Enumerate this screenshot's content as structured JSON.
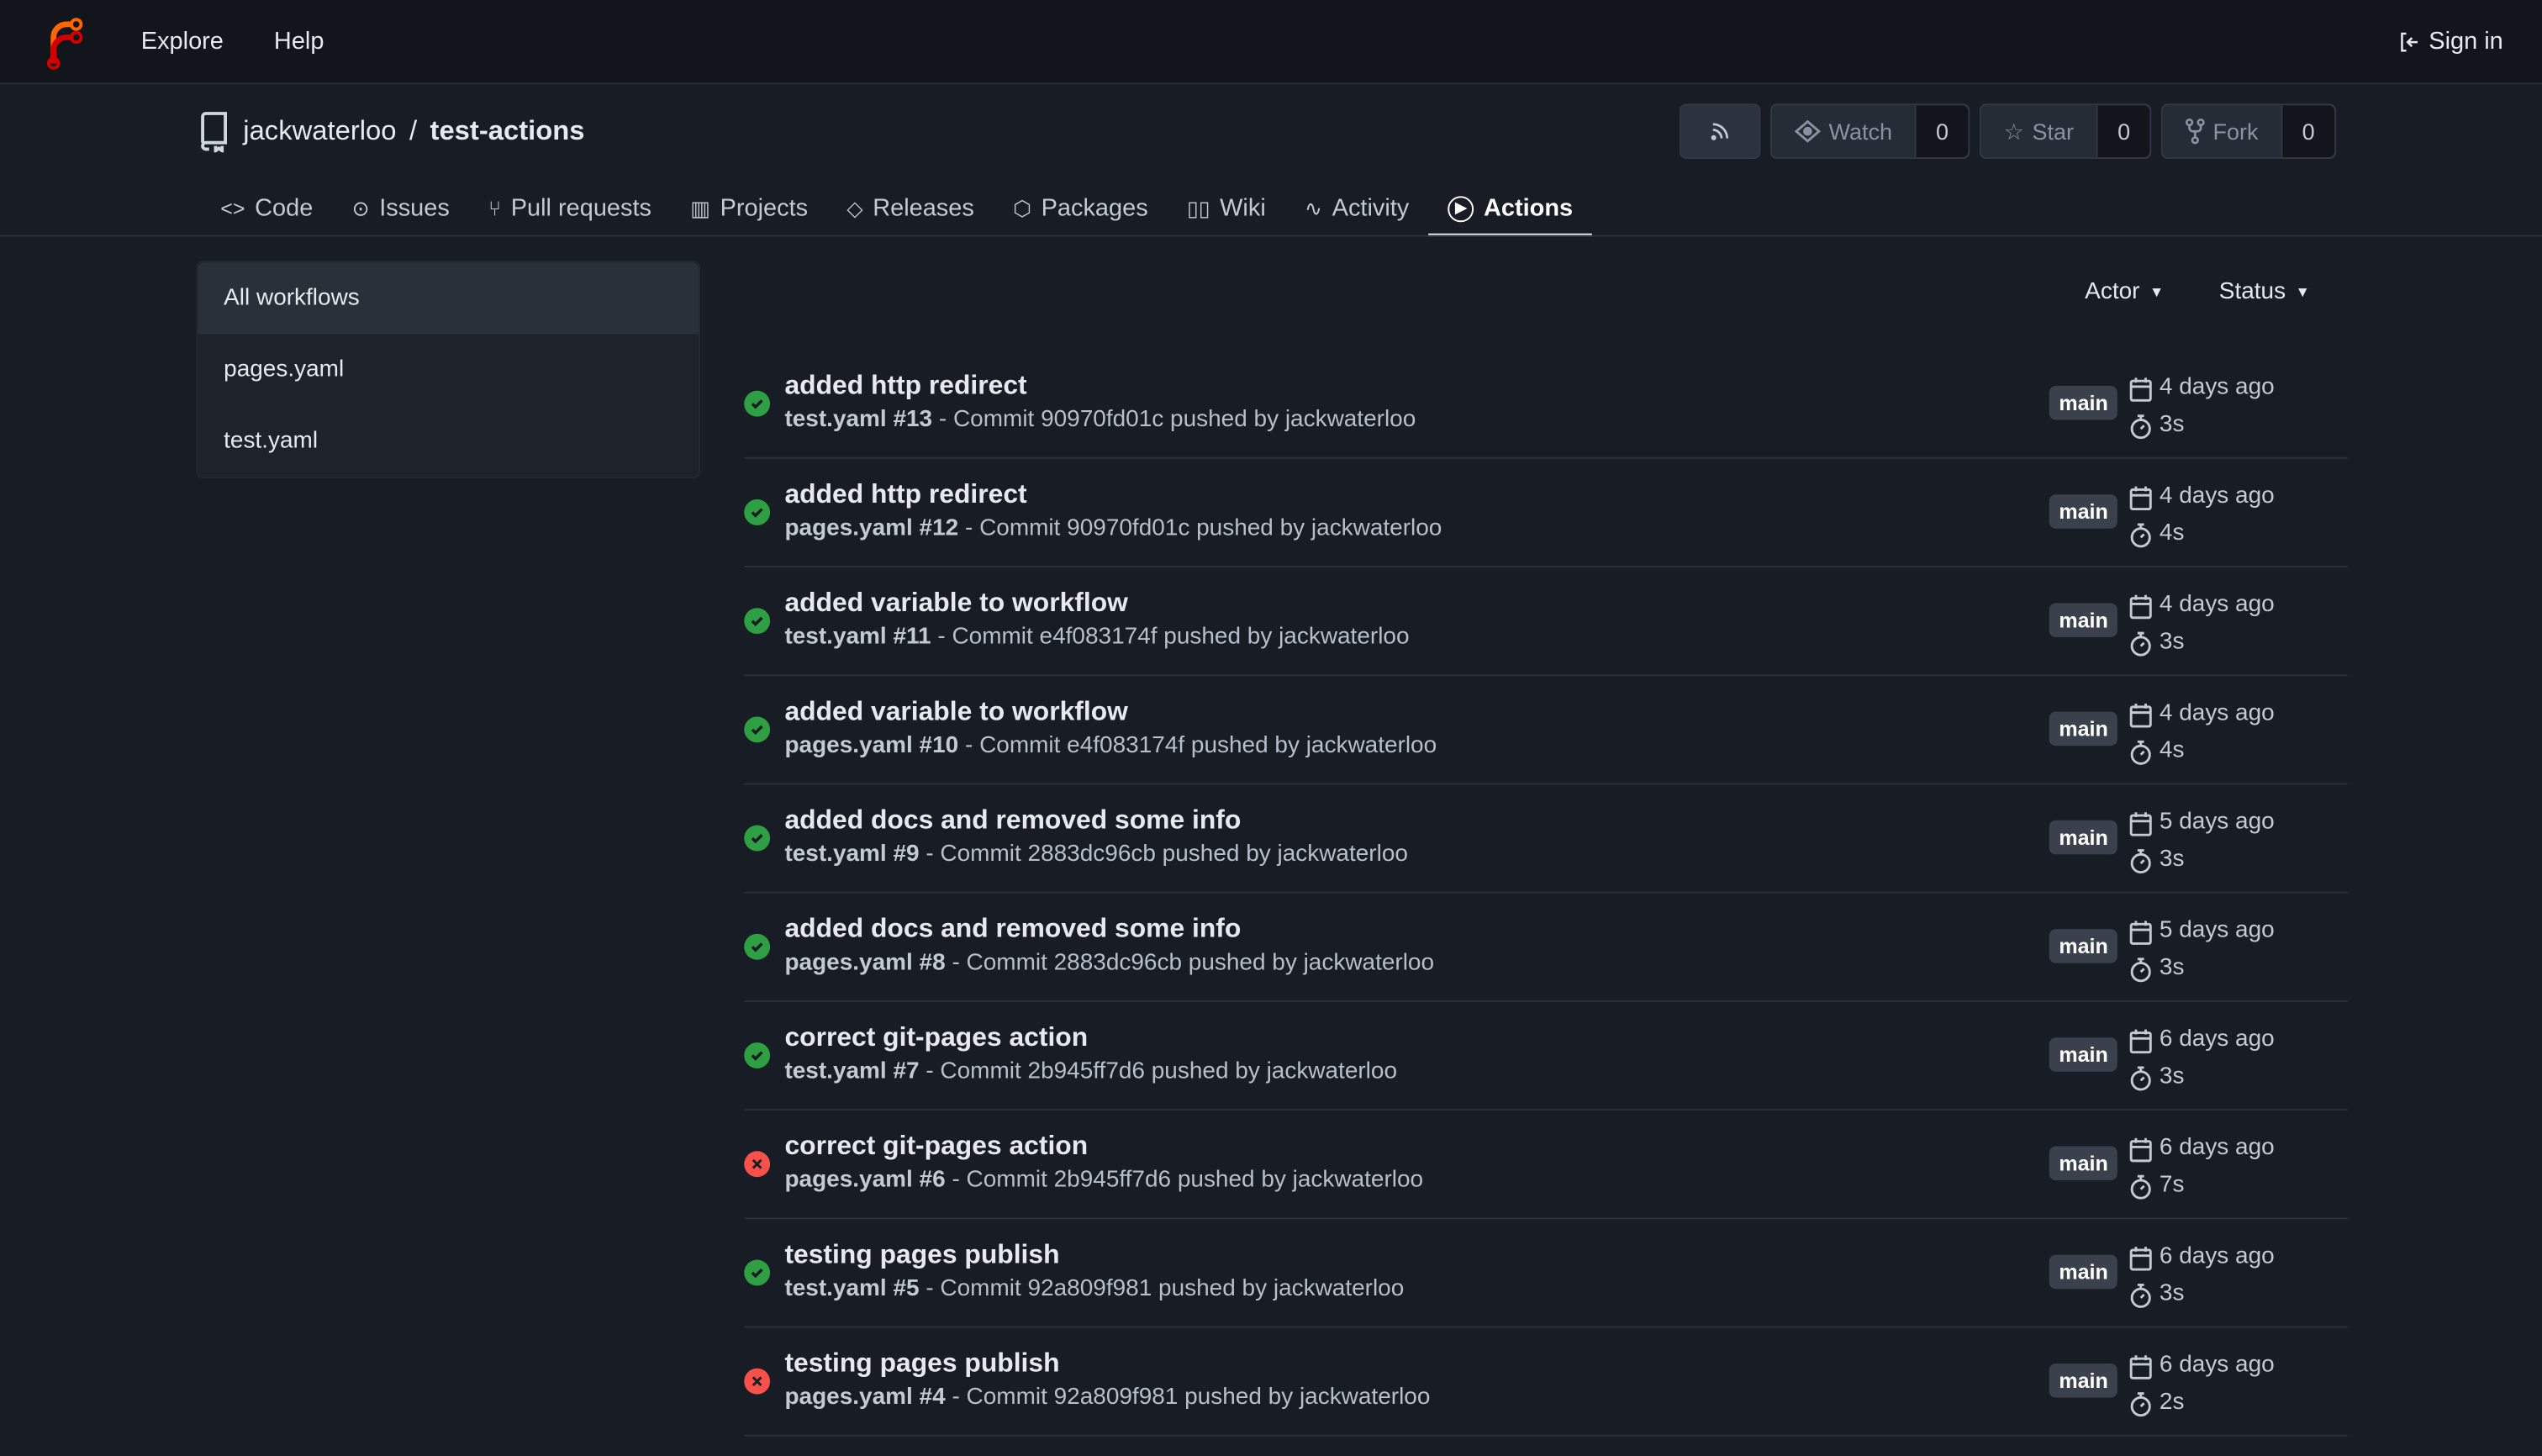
{
  "topbar": {
    "explore": "Explore",
    "help": "Help",
    "sign_in": "Sign in"
  },
  "repo": {
    "owner": "jackwaterloo",
    "separator": "/",
    "name": "test-actions"
  },
  "buttons": {
    "watch": "Watch",
    "watch_count": "0",
    "star": "Star",
    "star_count": "0",
    "fork": "Fork",
    "fork_count": "0"
  },
  "tabs": [
    {
      "label": "Code",
      "icon": "code-icon"
    },
    {
      "label": "Issues",
      "icon": "issue-icon"
    },
    {
      "label": "Pull requests",
      "icon": "pull-request-icon"
    },
    {
      "label": "Projects",
      "icon": "project-icon"
    },
    {
      "label": "Releases",
      "icon": "tag-icon"
    },
    {
      "label": "Packages",
      "icon": "package-icon"
    },
    {
      "label": "Wiki",
      "icon": "book-icon"
    },
    {
      "label": "Activity",
      "icon": "pulse-icon"
    },
    {
      "label": "Actions",
      "icon": "play-icon",
      "active": true
    }
  ],
  "sidebar": {
    "items": [
      {
        "label": "All workflows",
        "active": true
      },
      {
        "label": "pages.yaml"
      },
      {
        "label": "test.yaml"
      }
    ]
  },
  "filters": {
    "actor": "Actor",
    "status": "Status"
  },
  "colors": {
    "success": "#2ea043",
    "failure": "#f85149"
  },
  "runs": [
    {
      "title": "added http redirect",
      "workflow": "test.yaml #13",
      "detail": "- Commit 90970fd01c pushed by jackwaterloo",
      "branch": "main",
      "when": "4 days ago",
      "duration": "3s",
      "status": "success"
    },
    {
      "title": "added http redirect",
      "workflow": "pages.yaml #12",
      "detail": "- Commit 90970fd01c pushed by jackwaterloo",
      "branch": "main",
      "when": "4 days ago",
      "duration": "4s",
      "status": "success"
    },
    {
      "title": "added variable to workflow",
      "workflow": "test.yaml #11",
      "detail": "- Commit e4f083174f pushed by jackwaterloo",
      "branch": "main",
      "when": "4 days ago",
      "duration": "3s",
      "status": "success"
    },
    {
      "title": "added variable to workflow",
      "workflow": "pages.yaml #10",
      "detail": "- Commit e4f083174f pushed by jackwaterloo",
      "branch": "main",
      "when": "4 days ago",
      "duration": "4s",
      "status": "success"
    },
    {
      "title": "added docs and removed some info",
      "workflow": "test.yaml #9",
      "detail": "- Commit 2883dc96cb pushed by jackwaterloo",
      "branch": "main",
      "when": "5 days ago",
      "duration": "3s",
      "status": "success"
    },
    {
      "title": "added docs and removed some info",
      "workflow": "pages.yaml #8",
      "detail": "- Commit 2883dc96cb pushed by jackwaterloo",
      "branch": "main",
      "when": "5 days ago",
      "duration": "3s",
      "status": "success"
    },
    {
      "title": "correct git-pages action",
      "workflow": "test.yaml #7",
      "detail": "- Commit 2b945ff7d6 pushed by jackwaterloo",
      "branch": "main",
      "when": "6 days ago",
      "duration": "3s",
      "status": "success"
    },
    {
      "title": "correct git-pages action",
      "workflow": "pages.yaml #6",
      "detail": "- Commit 2b945ff7d6 pushed by jackwaterloo",
      "branch": "main",
      "when": "6 days ago",
      "duration": "7s",
      "status": "failure"
    },
    {
      "title": "testing pages publish",
      "workflow": "test.yaml #5",
      "detail": "- Commit 92a809f981 pushed by jackwaterloo",
      "branch": "main",
      "when": "6 days ago",
      "duration": "3s",
      "status": "success"
    },
    {
      "title": "testing pages publish",
      "workflow": "pages.yaml #4",
      "detail": "- Commit 92a809f981 pushed by jackwaterloo",
      "branch": "main",
      "when": "6 days ago",
      "duration": "2s",
      "status": "failure"
    }
  ]
}
